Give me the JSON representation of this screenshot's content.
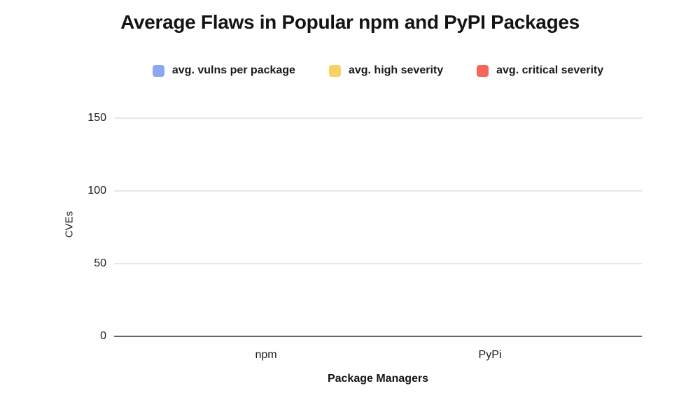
{
  "chart_data": {
    "type": "bar",
    "title": "Average Flaws in Popular npm and PyPI Packages",
    "categories": [
      "npm",
      "PyPi"
    ],
    "series": [
      {
        "name": "avg. vulns per package",
        "color": "#8CA8F4",
        "values": [
          0,
          0
        ]
      },
      {
        "name": "avg. high severity",
        "color": "#F5D262",
        "values": [
          0,
          0
        ]
      },
      {
        "name": "avg. critical severity",
        "color": "#F5655C",
        "values": [
          0,
          0
        ]
      }
    ],
    "xlabel": "Package Managers",
    "ylabel": "CVEs",
    "ylim": [
      0,
      150
    ],
    "yticks": [
      "0",
      "50",
      "100",
      "150"
    ],
    "grid": true,
    "legend_position": "top",
    "colors": {
      "background": "#ffffff",
      "gridline": "#e6e6e6",
      "baseline": "#676767",
      "text": "#1a1a1a"
    }
  }
}
